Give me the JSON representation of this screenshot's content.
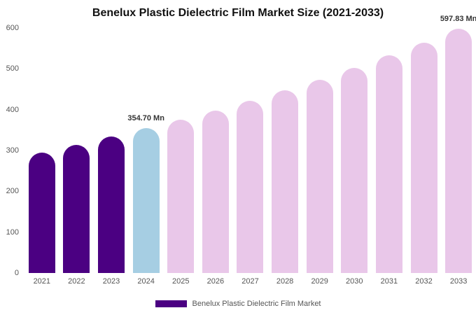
{
  "chart": {
    "title": "Benelux Plastic Dielectric Film Market Size (2021-2033)",
    "legend_label": "Benelux Plastic Dielectric Film Market"
  },
  "chart_data": {
    "type": "bar",
    "title": "Benelux Plastic Dielectric Film Market Size (2021-2033)",
    "categories": [
      "2021",
      "2022",
      "2023",
      "2024",
      "2025",
      "2026",
      "2027",
      "2028",
      "2029",
      "2030",
      "2031",
      "2032",
      "2033"
    ],
    "values": [
      295.5,
      313.5,
      334,
      354.7,
      376,
      398.5,
      422,
      447.5,
      474,
      502.5,
      532.5,
      564,
      597.83
    ],
    "unit": "Mn",
    "xlabel": "",
    "ylabel": "",
    "ylim": [
      0,
      600
    ],
    "yticks": [
      0,
      100,
      200,
      300,
      400,
      500,
      600
    ],
    "grid": false,
    "legend_position": "bottom",
    "legend": [
      {
        "label": "Benelux Plastic Dielectric Film Market",
        "color": "#4B0082"
      }
    ],
    "bar_colors": [
      "#4B0082",
      "#4B0082",
      "#4B0082",
      "#A6CEE3",
      "#E9C7E9",
      "#E9C7E9",
      "#E9C7E9",
      "#E9C7E9",
      "#E9C7E9",
      "#E9C7E9",
      "#E9C7E9",
      "#E9C7E9",
      "#E9C7E9"
    ],
    "annotations": [
      {
        "index": 3,
        "text": "354.70 Mn"
      },
      {
        "index": 12,
        "text": "597.83 Mn"
      }
    ]
  }
}
